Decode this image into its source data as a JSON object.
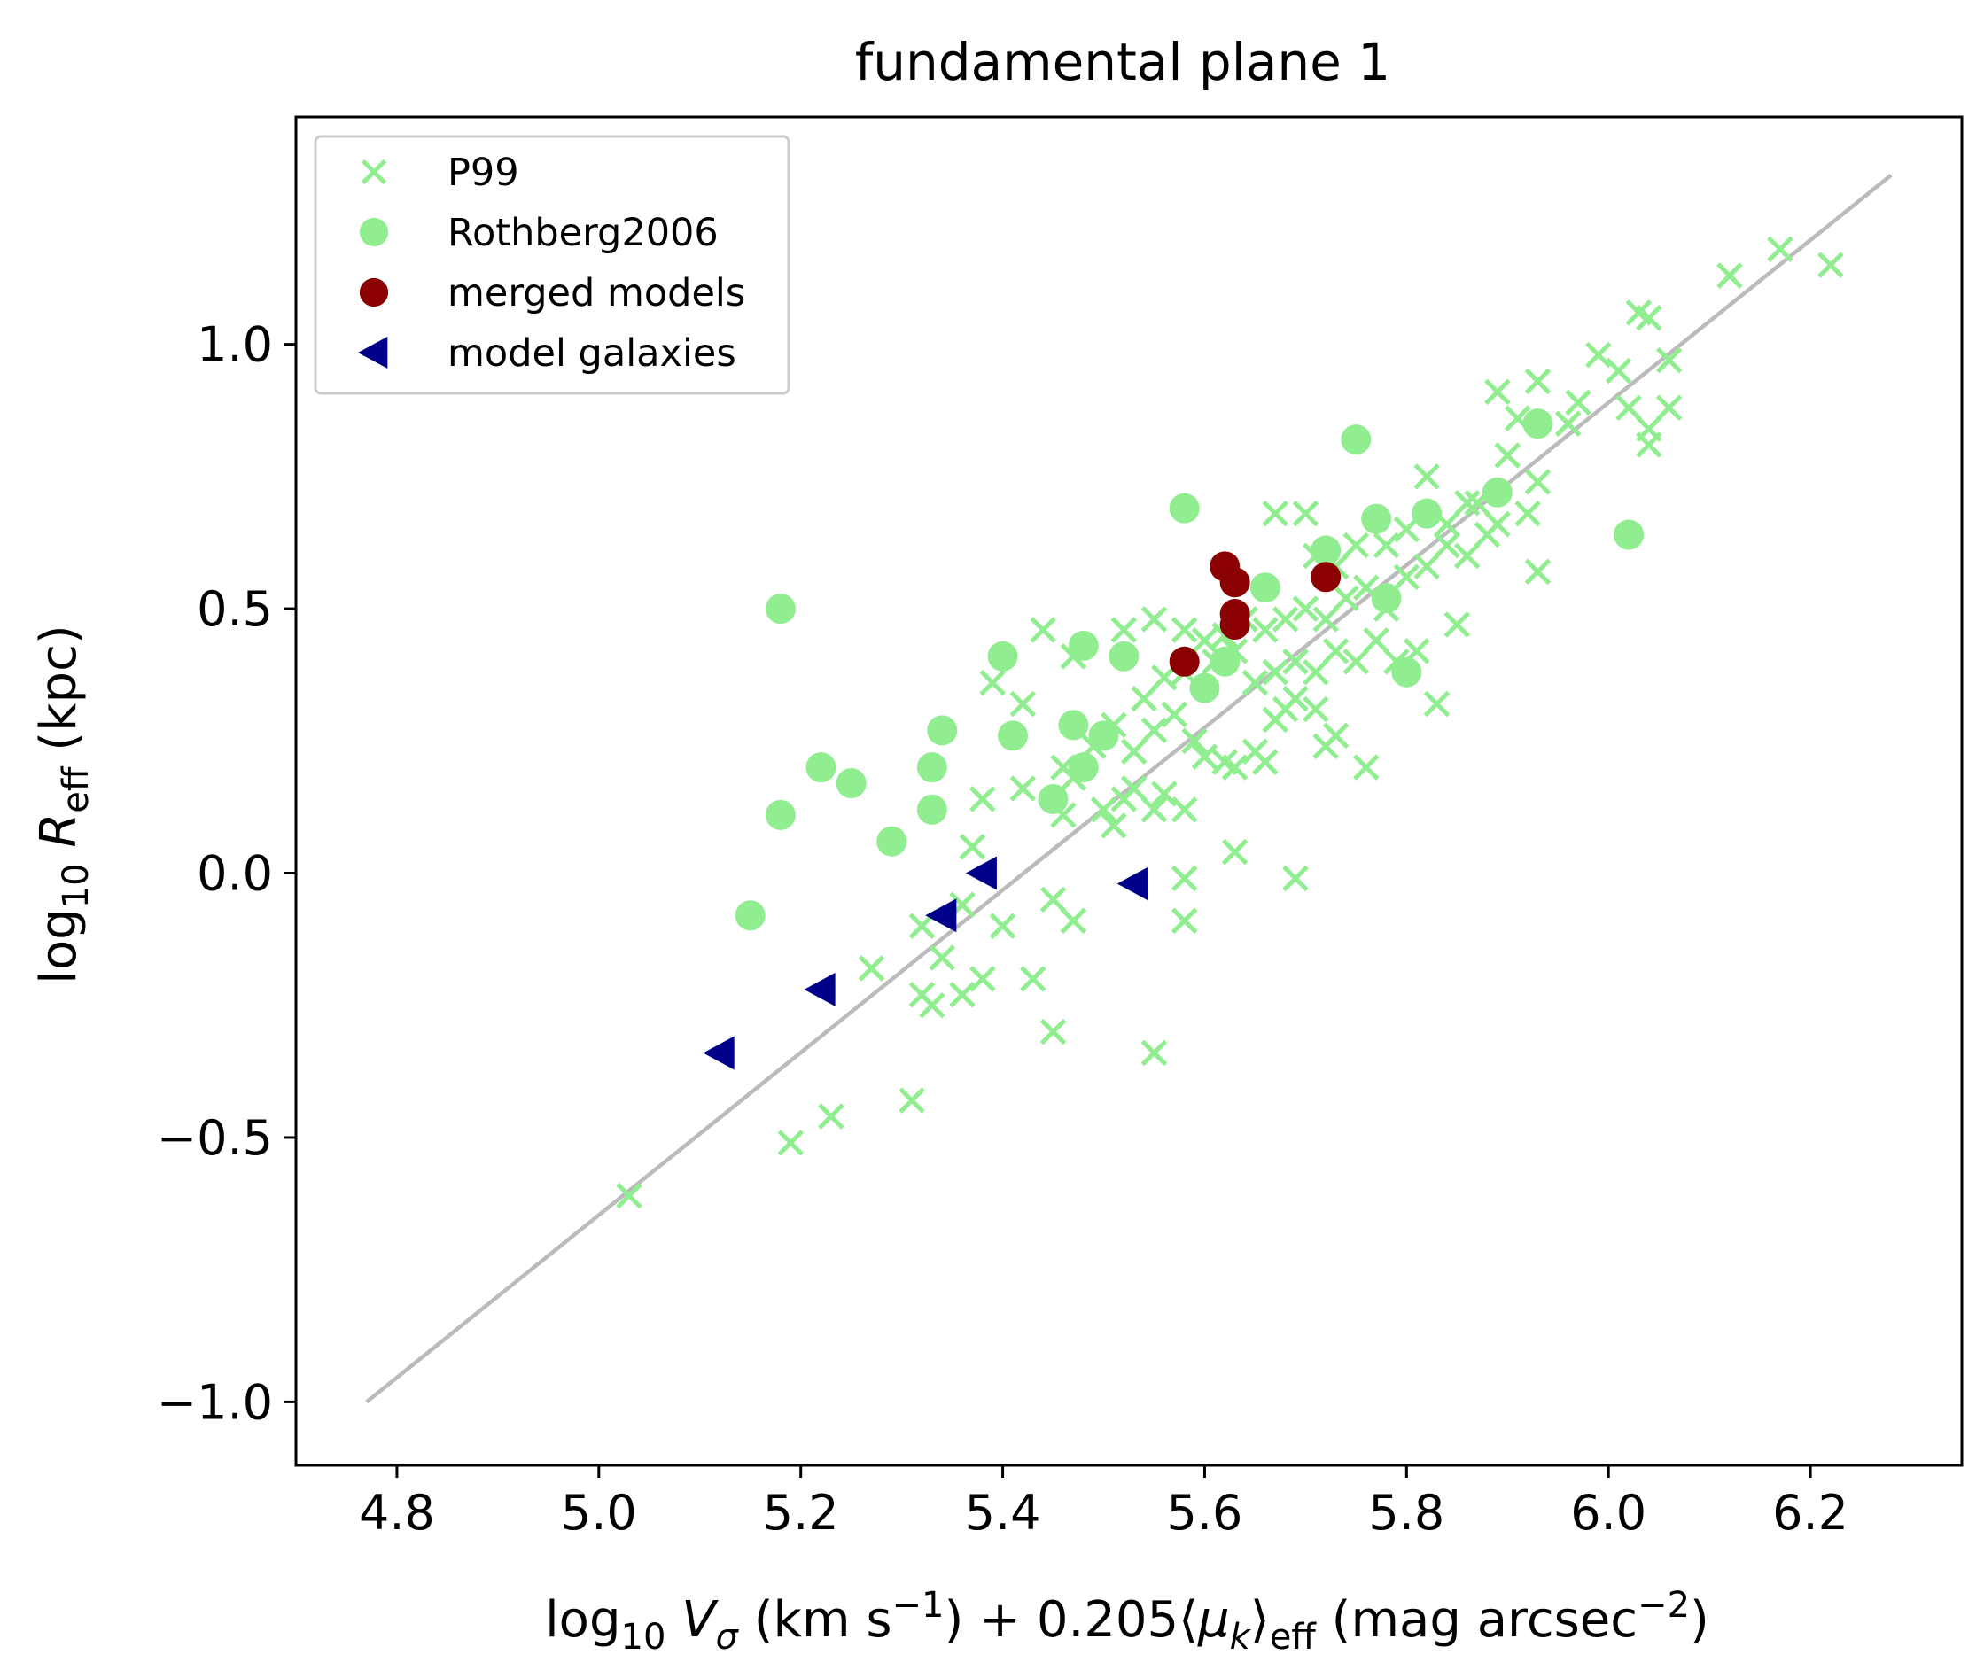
{
  "chart_data": {
    "type": "scatter",
    "title": "fundamental plane 1",
    "xlabel": {
      "prefix": "log",
      "prefix_sub": "10",
      "var": "V",
      "var_sub": "σ",
      "unit_open": " (km s",
      "unit_sup": "−1",
      "mid": ") + 0.205⟨",
      "mu": "μ",
      "mu_sub": "k",
      "close": "⟩",
      "eff": "eff",
      "unit2_open": " (mag arcsec",
      "unit2_sup": "−2",
      "unit2_close": ")"
    },
    "ylabel": {
      "prefix": "log",
      "prefix_sub": "10",
      "var": "R",
      "var_sub": "eff",
      "unit": " (kpc)"
    },
    "xlim": [
      4.7,
      6.35
    ],
    "ylim": [
      -1.12,
      1.43
    ],
    "xticks": [
      4.8,
      5.0,
      5.2,
      5.4,
      5.6,
      5.8,
      6.0,
      6.2
    ],
    "xtick_labels": [
      "4.8",
      "5.0",
      "5.2",
      "5.4",
      "5.6",
      "5.8",
      "6.0",
      "6.2"
    ],
    "yticks": [
      -1.0,
      -0.5,
      0.0,
      0.5,
      1.0
    ],
    "ytick_labels": [
      "−1.0",
      "−0.5",
      "0.0",
      "0.5",
      "1.0"
    ],
    "grid": false,
    "legend_position": "top-left",
    "fit_line": {
      "x": [
        4.77,
        6.28
      ],
      "y": [
        -1.0,
        1.32
      ],
      "color": "#bbbbbb"
    },
    "series": [
      {
        "name": "P99",
        "marker": "x",
        "color": "#90ee90",
        "points": [
          [
            5.03,
            -0.61
          ],
          [
            5.19,
            -0.51
          ],
          [
            5.23,
            -0.46
          ],
          [
            5.31,
            -0.43
          ],
          [
            5.27,
            -0.18
          ],
          [
            5.32,
            -0.23
          ],
          [
            5.33,
            -0.25
          ],
          [
            5.36,
            -0.23
          ],
          [
            5.38,
            -0.2
          ],
          [
            5.34,
            -0.16
          ],
          [
            5.43,
            -0.2
          ],
          [
            5.45,
            -0.3
          ],
          [
            5.55,
            -0.34
          ],
          [
            5.32,
            -0.1
          ],
          [
            5.36,
            -0.06
          ],
          [
            5.4,
            -0.1
          ],
          [
            5.47,
            -0.09
          ],
          [
            5.45,
            -0.05
          ],
          [
            5.58,
            -0.09
          ],
          [
            5.58,
            -0.01
          ],
          [
            5.63,
            0.04
          ],
          [
            5.69,
            -0.01
          ],
          [
            5.37,
            0.05
          ],
          [
            5.38,
            0.14
          ],
          [
            5.42,
            0.16
          ],
          [
            5.46,
            0.11
          ],
          [
            5.47,
            0.18
          ],
          [
            5.5,
            0.12
          ],
          [
            5.51,
            0.09
          ],
          [
            5.52,
            0.14
          ],
          [
            5.53,
            0.16
          ],
          [
            5.55,
            0.12
          ],
          [
            5.56,
            0.15
          ],
          [
            5.58,
            0.12
          ],
          [
            5.46,
            0.2
          ],
          [
            5.49,
            0.24
          ],
          [
            5.51,
            0.28
          ],
          [
            5.53,
            0.23
          ],
          [
            5.55,
            0.27
          ],
          [
            5.57,
            0.3
          ],
          [
            5.59,
            0.25
          ],
          [
            5.6,
            0.22
          ],
          [
            5.62,
            0.21
          ],
          [
            5.63,
            0.2
          ],
          [
            5.65,
            0.23
          ],
          [
            5.66,
            0.21
          ],
          [
            5.67,
            0.29
          ],
          [
            5.68,
            0.31
          ],
          [
            5.69,
            0.33
          ],
          [
            5.71,
            0.31
          ],
          [
            5.73,
            0.26
          ],
          [
            5.72,
            0.24
          ],
          [
            5.76,
            0.2
          ],
          [
            5.54,
            0.33
          ],
          [
            5.56,
            0.37
          ],
          [
            5.58,
            0.38
          ],
          [
            5.61,
            0.4
          ],
          [
            5.63,
            0.42
          ],
          [
            5.65,
            0.36
          ],
          [
            5.67,
            0.38
          ],
          [
            5.69,
            0.4
          ],
          [
            5.71,
            0.38
          ],
          [
            5.73,
            0.42
          ],
          [
            5.75,
            0.4
          ],
          [
            5.77,
            0.44
          ],
          [
            5.79,
            0.4
          ],
          [
            5.81,
            0.42
          ],
          [
            5.39,
            0.36
          ],
          [
            5.42,
            0.32
          ],
          [
            5.44,
            0.46
          ],
          [
            5.47,
            0.41
          ],
          [
            5.52,
            0.46
          ],
          [
            5.55,
            0.48
          ],
          [
            5.58,
            0.46
          ],
          [
            5.6,
            0.44
          ],
          [
            5.62,
            0.45
          ],
          [
            5.64,
            0.48
          ],
          [
            5.66,
            0.46
          ],
          [
            5.68,
            0.48
          ],
          [
            5.7,
            0.5
          ],
          [
            5.72,
            0.48
          ],
          [
            5.74,
            0.52
          ],
          [
            5.76,
            0.54
          ],
          [
            5.78,
            0.5
          ],
          [
            5.8,
            0.56
          ],
          [
            5.82,
            0.58
          ],
          [
            5.84,
            0.62
          ],
          [
            5.86,
            0.6
          ],
          [
            5.83,
            0.32
          ],
          [
            5.85,
            0.47
          ],
          [
            5.88,
            0.64
          ],
          [
            5.89,
            0.66
          ],
          [
            5.87,
            0.7
          ],
          [
            5.82,
            0.75
          ],
          [
            5.78,
            0.62
          ],
          [
            5.8,
            0.65
          ],
          [
            5.73,
            0.58
          ],
          [
            5.75,
            0.62
          ],
          [
            5.71,
            0.6
          ],
          [
            5.7,
            0.68
          ],
          [
            5.67,
            0.68
          ],
          [
            5.93,
            0.57
          ],
          [
            5.92,
            0.68
          ],
          [
            5.93,
            0.74
          ],
          [
            5.9,
            0.79
          ],
          [
            5.91,
            0.86
          ],
          [
            5.93,
            0.93
          ],
          [
            5.89,
            0.91
          ],
          [
            5.96,
            0.85
          ],
          [
            5.97,
            0.89
          ],
          [
            6.02,
            0.88
          ],
          [
            6.01,
            0.95
          ],
          [
            6.04,
            0.81
          ],
          [
            6.04,
            0.84
          ],
          [
            6.06,
            0.88
          ],
          [
            6.06,
            0.97
          ],
          [
            6.04,
            1.05
          ],
          [
            6.03,
            1.06
          ],
          [
            6.12,
            1.13
          ],
          [
            6.17,
            1.18
          ],
          [
            6.22,
            1.15
          ],
          [
            5.99,
            0.98
          ],
          [
            5.84,
            0.66
          ],
          [
            5.86,
            0.7
          ]
        ]
      },
      {
        "name": "Rothberg2006",
        "marker": "o",
        "color": "#90ee90",
        "points": [
          [
            5.15,
            -0.08
          ],
          [
            5.18,
            0.11
          ],
          [
            5.18,
            0.5
          ],
          [
            5.22,
            0.2
          ],
          [
            5.25,
            0.17
          ],
          [
            5.29,
            0.06
          ],
          [
            5.33,
            0.12
          ],
          [
            5.33,
            0.2
          ],
          [
            5.34,
            0.27
          ],
          [
            5.4,
            0.41
          ],
          [
            5.41,
            0.26
          ],
          [
            5.45,
            0.14
          ],
          [
            5.47,
            0.28
          ],
          [
            5.48,
            0.2
          ],
          [
            5.48,
            0.43
          ],
          [
            5.5,
            0.26
          ],
          [
            5.52,
            0.41
          ],
          [
            5.58,
            0.69
          ],
          [
            5.6,
            0.35
          ],
          [
            5.62,
            0.4
          ],
          [
            5.66,
            0.54
          ],
          [
            5.72,
            0.61
          ],
          [
            5.75,
            0.82
          ],
          [
            5.77,
            0.67
          ],
          [
            5.78,
            0.52
          ],
          [
            5.8,
            0.38
          ],
          [
            5.82,
            0.68
          ],
          [
            5.89,
            0.72
          ],
          [
            5.93,
            0.85
          ],
          [
            6.02,
            0.64
          ]
        ]
      },
      {
        "name": "merged models",
        "marker": "o",
        "color": "#8b0000",
        "points": [
          [
            5.58,
            0.4
          ],
          [
            5.62,
            0.58
          ],
          [
            5.63,
            0.55
          ],
          [
            5.63,
            0.49
          ],
          [
            5.63,
            0.47
          ],
          [
            5.72,
            0.56
          ]
        ]
      },
      {
        "name": "model galaxies",
        "marker": "<",
        "color": "#00008b",
        "points": [
          [
            5.12,
            -0.34
          ],
          [
            5.22,
            -0.22
          ],
          [
            5.34,
            -0.08
          ],
          [
            5.38,
            0.0
          ],
          [
            5.53,
            -0.02
          ]
        ]
      }
    ]
  }
}
